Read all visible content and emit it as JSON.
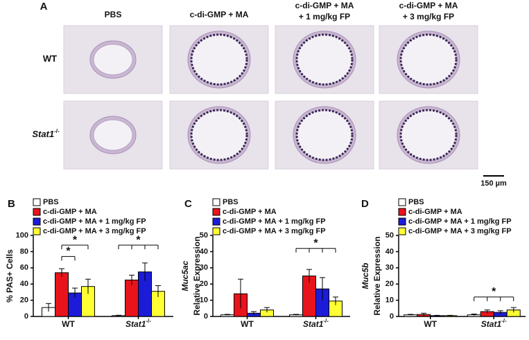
{
  "panel_a": {
    "panel": "A",
    "columns": [
      [
        "PBS"
      ],
      [
        "c-di-GMP + MA"
      ],
      [
        "c-di-GMP + MA",
        "+ 1 mg/kg FP"
      ],
      [
        "c-di-GMP + MA",
        "+ 3 mg/kg FP"
      ]
    ],
    "rows": [
      {
        "label": "WT",
        "superscript": null
      },
      {
        "label": "Stat1",
        "superscript": "-/-"
      }
    ],
    "scale_bar": "150 µm"
  },
  "chart_data": [
    {
      "type": "bar",
      "panel": "B",
      "y_label": [
        "% PAS+ Cells"
      ],
      "categories": [
        "WT",
        "Stat1"
      ],
      "category_superscripts": [
        null,
        "-/-"
      ],
      "ylim": [
        0,
        100
      ],
      "yticks": [
        0,
        20,
        40,
        60,
        80,
        100
      ],
      "series": [
        {
          "name": "PBS",
          "color": "#ffffff",
          "values": [
            11,
            1
          ],
          "errors": [
            5,
            0.5
          ]
        },
        {
          "name": "c-di-GMP + MA",
          "color": "#e8141b",
          "values": [
            54,
            45
          ],
          "errors": [
            5,
            6
          ]
        },
        {
          "name": "c-di-GMP + MA + 1 mg/kg FP",
          "color": "#1c1cd8",
          "values": [
            29,
            55
          ],
          "errors": [
            6,
            11
          ]
        },
        {
          "name": "c-di-GMP + MA + 3 mg/kg FP",
          "color": "#ffff33",
          "values": [
            37,
            31
          ],
          "errors": [
            9,
            7
          ]
        }
      ],
      "annotations": [
        "*",
        "*",
        "*"
      ]
    },
    {
      "type": "bar",
      "panel": "C",
      "y_label": [
        "Muc5ac",
        "Relative Expression"
      ],
      "categories": [
        "WT",
        "Stat1"
      ],
      "category_superscripts": [
        null,
        "-/-"
      ],
      "ylim": [
        0,
        50
      ],
      "yticks": [
        0,
        10,
        20,
        30,
        40,
        50
      ],
      "series": [
        {
          "name": "PBS",
          "color": "#ffffff",
          "values": [
            1,
            1
          ],
          "errors": [
            0.3,
            0.3
          ]
        },
        {
          "name": "c-di-GMP + MA",
          "color": "#e8141b",
          "values": [
            14,
            25
          ],
          "errors": [
            9,
            4
          ]
        },
        {
          "name": "c-di-GMP + MA + 1 mg/kg FP",
          "color": "#1c1cd8",
          "values": [
            2,
            17
          ],
          "errors": [
            1,
            7
          ]
        },
        {
          "name": "c-di-GMP + MA + 3 mg/kg FP",
          "color": "#ffff33",
          "values": [
            4,
            9.5
          ],
          "errors": [
            1.5,
            2.5
          ]
        }
      ],
      "annotations": [
        "*"
      ]
    },
    {
      "type": "bar",
      "panel": "D",
      "y_label": [
        "Muc5b",
        "Relative Expression"
      ],
      "categories": [
        "WT",
        "Stat1"
      ],
      "category_superscripts": [
        null,
        "-/-"
      ],
      "ylim": [
        0,
        50
      ],
      "yticks": [
        0,
        10,
        20,
        30,
        40,
        50
      ],
      "series": [
        {
          "name": "PBS",
          "color": "#ffffff",
          "values": [
            1,
            1
          ],
          "errors": [
            0.3,
            0.5
          ]
        },
        {
          "name": "c-di-GMP + MA",
          "color": "#e8141b",
          "values": [
            1.2,
            3
          ],
          "errors": [
            0.8,
            1
          ]
        },
        {
          "name": "c-di-GMP + MA + 1 mg/kg FP",
          "color": "#1c1cd8",
          "values": [
            0.5,
            2.5
          ],
          "errors": [
            0.2,
            1
          ]
        },
        {
          "name": "c-di-GMP + MA + 3 mg/kg FP",
          "color": "#ffff33",
          "values": [
            0.5,
            4
          ],
          "errors": [
            0.2,
            1.5
          ]
        }
      ],
      "annotations": [
        "*"
      ]
    }
  ]
}
